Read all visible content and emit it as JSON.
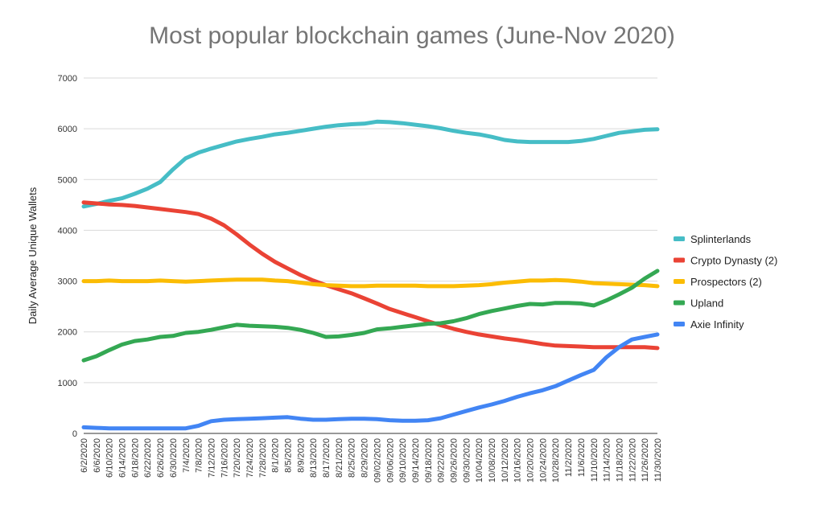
{
  "chart_data": {
    "type": "line",
    "title": "Most popular blockchain games (June-Nov 2020)",
    "xlabel": "",
    "ylabel": "Daily Average Unique Wallets",
    "ylim": [
      0,
      7000
    ],
    "yticks": [
      "0",
      "1000",
      "2000",
      "3000",
      "4000",
      "5000",
      "6000",
      "7000"
    ],
    "grid": true,
    "legend_position": "right",
    "categories": [
      "6/2/2020",
      "6/6/2020",
      "6/10/2020",
      "6/14/2020",
      "6/18/2020",
      "6/22/2020",
      "6/26/2020",
      "6/30/2020",
      "7/4/2020",
      "7/8/2020",
      "7/12/2020",
      "7/16/2020",
      "7/20/2020",
      "7/24/2020",
      "7/28/2020",
      "8/1/2020",
      "8/5/2020",
      "8/9/2020",
      "8/13/2020",
      "8/17/2020",
      "8/21/2020",
      "8/25/2020",
      "8/29/2020",
      "09/02/2020",
      "09/06/2020",
      "09/10/2020",
      "09/14/2020",
      "09/18/2020",
      "09/22/2020",
      "09/26/2020",
      "09/30/2020",
      "10/04/2020",
      "10/08/2020",
      "10/12/2020",
      "10/16/2020",
      "10/20/2020",
      "10/24/2020",
      "10/28/2020",
      "11/2/2020",
      "11/6/2020",
      "11/10/2020",
      "11/14/2020",
      "11/18/2020",
      "11/22/2020",
      "11/26/2020",
      "11/30/2020"
    ],
    "series": [
      {
        "name": "Splinterlands",
        "color": "#46bdc6",
        "values": [
          4470,
          4520,
          4580,
          4630,
          4720,
          4820,
          4950,
          5200,
          5420,
          5530,
          5610,
          5680,
          5750,
          5800,
          5840,
          5890,
          5920,
          5960,
          6000,
          6040,
          6070,
          6090,
          6100,
          6140,
          6130,
          6110,
          6080,
          6050,
          6010,
          5960,
          5920,
          5890,
          5840,
          5780,
          5750,
          5740,
          5740,
          5740,
          5740,
          5760,
          5800,
          5860,
          5920,
          5950,
          5980,
          5990
        ]
      },
      {
        "name": "Crypto Dynasty (2)",
        "color": "#ea4335",
        "values": [
          4550,
          4530,
          4510,
          4500,
          4480,
          4450,
          4420,
          4390,
          4360,
          4320,
          4230,
          4100,
          3920,
          3720,
          3540,
          3380,
          3250,
          3120,
          3010,
          2920,
          2840,
          2760,
          2660,
          2560,
          2450,
          2370,
          2290,
          2210,
          2130,
          2060,
          2000,
          1950,
          1910,
          1870,
          1840,
          1800,
          1760,
          1730,
          1720,
          1710,
          1700,
          1700,
          1700,
          1700,
          1700,
          1680
        ]
      },
      {
        "name": "Prospectors (2)",
        "color": "#fbbc04",
        "values": [
          3000,
          3000,
          3010,
          3000,
          3000,
          3000,
          3010,
          3000,
          2990,
          3000,
          3010,
          3020,
          3030,
          3030,
          3030,
          3010,
          3000,
          2970,
          2940,
          2920,
          2910,
          2900,
          2900,
          2910,
          2910,
          2910,
          2910,
          2900,
          2900,
          2900,
          2910,
          2920,
          2940,
          2970,
          2990,
          3010,
          3010,
          3020,
          3010,
          2990,
          2960,
          2950,
          2940,
          2930,
          2920,
          2900
        ]
      },
      {
        "name": "Upland",
        "color": "#34a853",
        "values": [
          1440,
          1520,
          1640,
          1750,
          1820,
          1850,
          1900,
          1920,
          1980,
          2000,
          2040,
          2090,
          2140,
          2120,
          2110,
          2100,
          2080,
          2040,
          1980,
          1900,
          1910,
          1940,
          1980,
          2050,
          2070,
          2100,
          2130,
          2160,
          2170,
          2210,
          2270,
          2350,
          2410,
          2460,
          2510,
          2550,
          2540,
          2570,
          2570,
          2560,
          2520,
          2620,
          2740,
          2870,
          3050,
          3200
        ]
      },
      {
        "name": "Axie Infinity",
        "color": "#4285f4",
        "values": [
          120,
          110,
          100,
          100,
          100,
          100,
          100,
          100,
          100,
          150,
          240,
          270,
          280,
          290,
          300,
          310,
          320,
          290,
          270,
          270,
          280,
          290,
          290,
          280,
          260,
          250,
          250,
          260,
          300,
          370,
          440,
          510,
          570,
          640,
          720,
          790,
          850,
          930,
          1040,
          1150,
          1250,
          1500,
          1700,
          1850,
          1900,
          1950
        ]
      }
    ]
  }
}
